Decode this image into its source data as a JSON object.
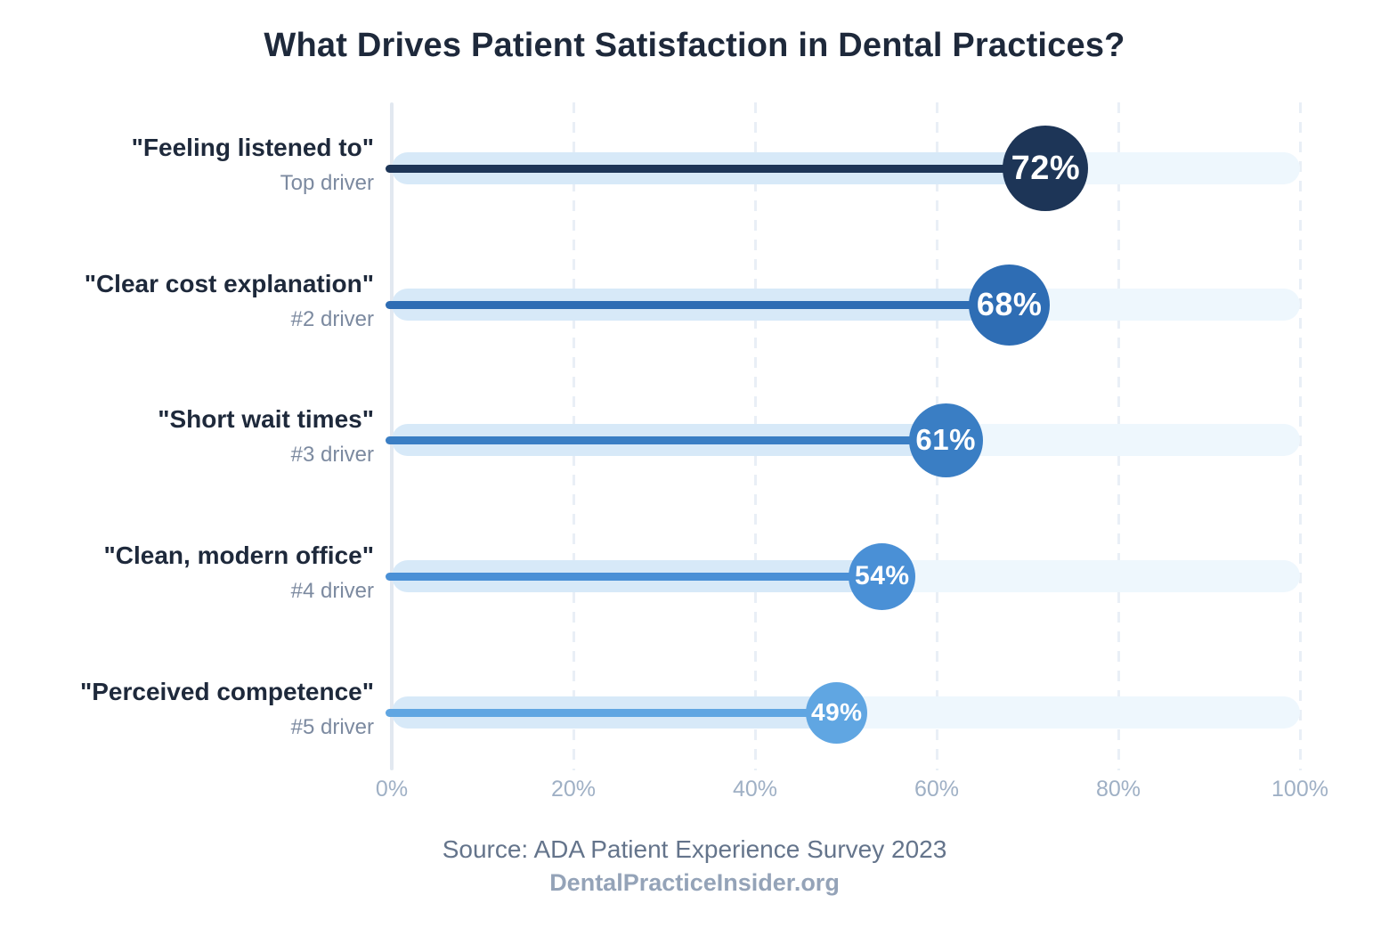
{
  "title": "What Drives Patient Satisfaction in Dental Practices?",
  "footer": {
    "source": "Source: ADA Patient Experience Survey 2023",
    "site": "DentalPracticeInsider.org"
  },
  "colors": {
    "title_text": "#1e293b",
    "category_text": "#1e293b",
    "sublabel_text": "#7c8aa0",
    "axis_line": "#e2e8f0",
    "gridline": "#e9eff6",
    "tick_text": "#9fb0c5",
    "track_background": "#eef7fd",
    "track_fill": "#d7e9f8",
    "bubble_text": "#ffffff",
    "source_text": "#64748b",
    "site_text": "#94a3b8"
  },
  "chart_data": {
    "type": "bar",
    "style": "lollipop",
    "orientation": "horizontal",
    "title": "What Drives Patient Satisfaction in Dental Practices?",
    "categories": [
      "\"Feeling listened to\"",
      "\"Clear cost explanation\"",
      "\"Short wait times\"",
      "\"Clean, modern office\"",
      "\"Perceived competence\""
    ],
    "sublabels": [
      "Top driver",
      "#2 driver",
      "#3 driver",
      "#4 driver",
      "#5 driver"
    ],
    "values": [
      72,
      68,
      61,
      54,
      49
    ],
    "value_labels": [
      "72%",
      "68%",
      "61%",
      "54%",
      "49%"
    ],
    "bar_colors": [
      "#1d3557",
      "#2e6db4",
      "#3a7ec4",
      "#4a90d6",
      "#60a6e2"
    ],
    "xlim": [
      0,
      100
    ],
    "x_ticks": [
      "0%",
      "20%",
      "40%",
      "60%",
      "80%",
      "100%"
    ],
    "x_tick_values": [
      0,
      20,
      40,
      60,
      80,
      100
    ],
    "grid": "vertical-dashed",
    "legend": "none",
    "annotation": "Source: ADA Patient Experience Survey 2023 — DentalPracticeInsider.org"
  }
}
